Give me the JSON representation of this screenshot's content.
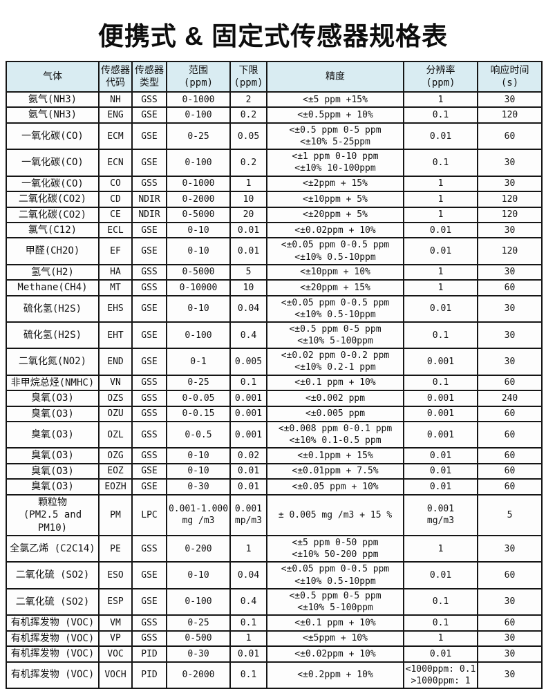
{
  "page": {
    "title": "便携式 & 固定式传感器规格表",
    "background_color": "#ffffff",
    "header_bg_color": "#d9ecf2",
    "border_color": "#151515"
  },
  "table": {
    "headers": [
      "气体",
      "传感器\n代码",
      "传感器\n类型",
      "范围\n(ppm)",
      "下限\n(ppm)",
      "精度",
      "分辨率\n(ppm)",
      "响应时间\n(s)"
    ],
    "row_keys": [
      "gas",
      "code",
      "type",
      "range",
      "limit",
      "accuracy",
      "resolution",
      "response"
    ],
    "rows": [
      {
        "gas": "氨气(NH3)",
        "code": "NH",
        "type": "GSS",
        "range": "0-1000",
        "limit": "2",
        "accuracy": "<±5 ppm +15%",
        "resolution": "1",
        "response": "30"
      },
      {
        "gas": "氨气(NH3)",
        "code": "ENG",
        "type": "GSE",
        "range": "0-100",
        "limit": "0.2",
        "accuracy": "<±0.5ppm + 10%",
        "resolution": "0.1",
        "response": "120"
      },
      {
        "gas": "一氧化碳(CO)",
        "code": "ECM",
        "type": "GSE",
        "range": "0-25",
        "limit": "0.05",
        "accuracy": "<±0.5 ppm 0-5 ppm\n<±10% 5-25ppm",
        "resolution": "0.01",
        "response": "60"
      },
      {
        "gas": "一氧化碳(CO)",
        "code": "ECN",
        "type": "GSE",
        "range": "0-100",
        "limit": "0.2",
        "accuracy": "<±1 ppm 0-10 ppm\n<±10% 10-100ppm",
        "resolution": "0.1",
        "response": "30"
      },
      {
        "gas": "一氧化碳(CO)",
        "code": "CO",
        "type": "GSS",
        "range": "0-1000",
        "limit": "1",
        "accuracy": "<±2ppm + 15%",
        "resolution": "1",
        "response": "30"
      },
      {
        "gas": "二氧化碳(CO2)",
        "code": "CD",
        "type": "NDIR",
        "range": "0-2000",
        "limit": "10",
        "accuracy": "<±10ppm + 5%",
        "resolution": "1",
        "response": "120"
      },
      {
        "gas": "二氧化碳(CO2)",
        "code": "CE",
        "type": "NDIR",
        "range": "0-5000",
        "limit": "20",
        "accuracy": "<±20ppm + 5%",
        "resolution": "1",
        "response": "120"
      },
      {
        "gas": "氯气(C12)",
        "code": "ECL",
        "type": "GSE",
        "range": "0-10",
        "limit": "0.01",
        "accuracy": "<±0.02ppm + 10%",
        "resolution": "0.01",
        "response": "30"
      },
      {
        "gas": "甲醛(CH2O)",
        "code": "EF",
        "type": "GSE",
        "range": "0-10",
        "limit": "0.01",
        "accuracy": "<±0.05 ppm 0-0.5 ppm\n<±10% 0.5-10ppm",
        "resolution": "0.01",
        "response": "120"
      },
      {
        "gas": "氢气(H2)",
        "code": "HA",
        "type": "GSS",
        "range": "0-5000",
        "limit": "5",
        "accuracy": "<±10ppm + 10%",
        "resolution": "1",
        "response": "30"
      },
      {
        "gas": "Methane(CH4)",
        "code": "MT",
        "type": "GSS",
        "range": "0-10000",
        "limit": "10",
        "accuracy": "<±20ppm + 15%",
        "resolution": "1",
        "response": "60"
      },
      {
        "gas": "硫化氢(H2S)",
        "code": "EHS",
        "type": "GSE",
        "range": "0-10",
        "limit": "0.04",
        "accuracy": "<±0.05 ppm 0-0.5 ppm\n<±10% 0.5-10ppm",
        "resolution": "0.01",
        "response": "30"
      },
      {
        "gas": "硫化氢(H2S)",
        "code": "EHT",
        "type": "GSE",
        "range": "0-100",
        "limit": "0.4",
        "accuracy": "<±0.5 ppm 0-5 ppm\n<±10% 5-100ppm",
        "resolution": "0.1",
        "response": "30"
      },
      {
        "gas": "二氧化氮(NO2)",
        "code": "END",
        "type": "GSE",
        "range": "0-1",
        "limit": "0.005",
        "accuracy": "<±0.02 ppm 0-0.2 ppm\n<±10% 0.2-1 ppm",
        "resolution": "0.001",
        "response": "30"
      },
      {
        "gas": "非甲烷总烃(NMHC)",
        "code": "VN",
        "type": "GSS",
        "range": "0-25",
        "limit": "0.1",
        "accuracy": "<±0.1 ppm + 10%",
        "resolution": "0.1",
        "response": "60"
      },
      {
        "gas": "臭氧(O3)",
        "code": "OZS",
        "type": "GSS",
        "range": "0-0.05",
        "limit": "0.001",
        "accuracy": "<±0.002 ppm",
        "resolution": "0.001",
        "response": "240"
      },
      {
        "gas": "臭氧(O3)",
        "code": "OZU",
        "type": "GSS",
        "range": "0-0.15",
        "limit": "0.001",
        "accuracy": "<±0.005 ppm",
        "resolution": "0.001",
        "response": "60"
      },
      {
        "gas": "臭氧(O3)",
        "code": "OZL",
        "type": "GSS",
        "range": "0-0.5",
        "limit": "0.001",
        "accuracy": "<±0.008 ppm 0-0.1 ppm\n<±10% 0.1-0.5 ppm",
        "resolution": "0.001",
        "response": "60"
      },
      {
        "gas": "臭氧(O3)",
        "code": "OZG",
        "type": "GSS",
        "range": "0-10",
        "limit": "0.02",
        "accuracy": "<±0.1ppm + 15%",
        "resolution": "0.01",
        "response": "60"
      },
      {
        "gas": "臭氧(O3)",
        "code": "EOZ",
        "type": "GSE",
        "range": "0-10",
        "limit": "0.01",
        "accuracy": "<±0.01ppm + 7.5%",
        "resolution": "0.01",
        "response": "60"
      },
      {
        "gas": "臭氧(O3)",
        "code": "EOZH",
        "type": "GSE",
        "range": "0-30",
        "limit": "0.01",
        "accuracy": "<±0.05 ppm + 10%",
        "resolution": "0.01",
        "response": "60"
      },
      {
        "gas": "颗粒物\n(PM2.5 and PM10)",
        "code": "PM",
        "type": "LPC",
        "range": "0.001-1.000\nmg /m3",
        "limit": "0.001\nmp/m3",
        "accuracy": "± 0.005 mg /m3 + 15 %",
        "resolution": "0.001\nmg/m3",
        "response": "5"
      },
      {
        "gas": "全氯乙烯 (C2C14)",
        "code": "PE",
        "type": "GSS",
        "range": "0-200",
        "limit": "1",
        "accuracy": "<±5 ppm 0-50 ppm\n<±10% 50-200 ppm",
        "resolution": "1",
        "response": "30"
      },
      {
        "gas": "二氧化硫 (SO2)",
        "code": "ESO",
        "type": "GSE",
        "range": "0-10",
        "limit": "0.04",
        "accuracy": "<±0.05 ppm 0-0.5 ppm\n<±10% 0.5-10ppm",
        "resolution": "0.01",
        "response": "60"
      },
      {
        "gas": "二氧化硫 (SO2)",
        "code": "ESP",
        "type": "GSE",
        "range": "0-100",
        "limit": "0.4",
        "accuracy": "<±0.5 ppm 0-5 ppm\n<±10% 5-100ppm",
        "resolution": "0.1",
        "response": "30"
      },
      {
        "gas": "有机挥发物 (VOC)",
        "code": "VM",
        "type": "GSS",
        "range": "0-25",
        "limit": "0.1",
        "accuracy": "<±0.1 ppm + 10%",
        "resolution": "0.1",
        "response": "60"
      },
      {
        "gas": "有机挥发物 (VOC)",
        "code": "VP",
        "type": "GSS",
        "range": "0-500",
        "limit": "1",
        "accuracy": "<±5ppm + 10%",
        "resolution": "1",
        "response": "30"
      },
      {
        "gas": "有机挥发物 (VOC)",
        "code": "VOC",
        "type": "PID",
        "range": "0-30",
        "limit": "0.01",
        "accuracy": "<±0.02ppm + 10%",
        "resolution": "0.01",
        "response": "30"
      },
      {
        "gas": "有机挥发物 (VOC)",
        "code": "VOCH",
        "type": "PID",
        "range": "0-2000",
        "limit": "0.1",
        "accuracy": "<±0.2ppm + 10%",
        "resolution": "<1000ppm: 0.1\n>1000ppm: 1",
        "response": "30"
      }
    ]
  }
}
